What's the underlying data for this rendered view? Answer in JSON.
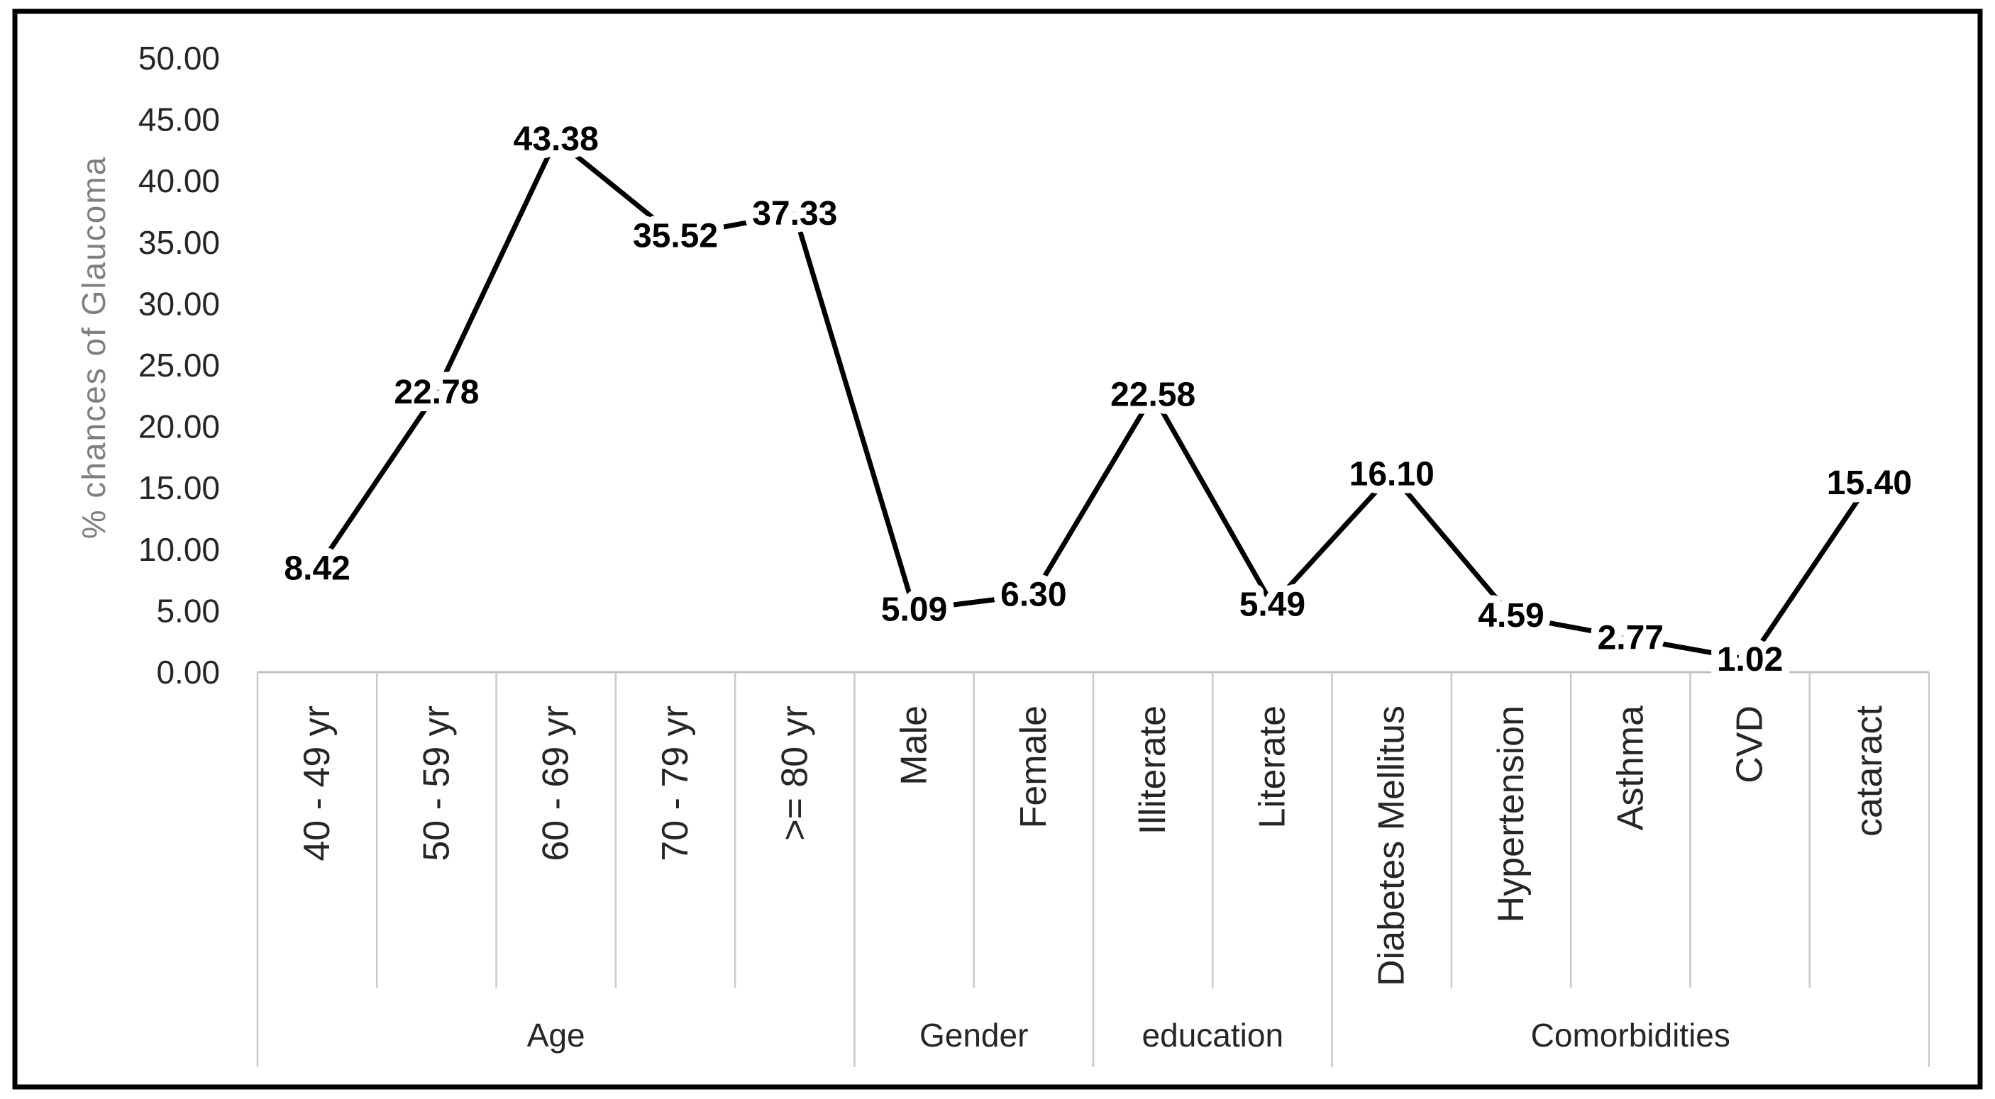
{
  "chart_data": {
    "type": "line",
    "title": "",
    "xlabel": "",
    "ylabel": "% chances of Glaucoma",
    "ylim": [
      0,
      50
    ],
    "ytick_step": 5,
    "ytick_labels": [
      "50.00",
      "45.00",
      "40.00",
      "35.00",
      "30.00",
      "25.00",
      "20.00",
      "15.00",
      "10.00",
      "5.00",
      "0.00"
    ],
    "grid": false,
    "legend": null,
    "marker": "none",
    "line_color": "#000000",
    "categories": [
      "40 - 49 yr",
      "50 - 59 yr",
      "60 - 69 yr",
      "70 - 79 yr",
      ">= 80 yr",
      "Male",
      "Female",
      "Illiterate",
      "Literate",
      "Diabetes Mellitus",
      "Hypertension",
      "Asthma",
      "CVD",
      "cataract"
    ],
    "values": [
      8.42,
      22.78,
      43.38,
      35.52,
      37.33,
      5.09,
      6.3,
      22.58,
      5.49,
      16.1,
      4.59,
      2.77,
      1.02,
      15.4
    ],
    "data_labels": [
      "8.42",
      "22.78",
      "43.38",
      "35.52",
      "37.33",
      "5.09",
      "6.30",
      "22.58",
      "5.49",
      "16.10",
      "4.59",
      "2.77",
      "1.02",
      "15.40"
    ],
    "groups": [
      {
        "label": "Age",
        "span": 5
      },
      {
        "label": "Gender",
        "span": 2
      },
      {
        "label": "education",
        "span": 2
      },
      {
        "label": "Comorbidities",
        "span": 5
      }
    ]
  },
  "styles": {
    "background": "#ffffff",
    "frame_color": "#000000",
    "divider_color": "#c9c9c9",
    "axis_line_color": "#c0c0c0",
    "tick_label_color": "#262626",
    "category_label_color": "#262626",
    "group_label_color": "#262626",
    "ytitle_color": "#7f7f7f",
    "data_label_color": "#000000",
    "data_label_halo": "#ffffff"
  }
}
